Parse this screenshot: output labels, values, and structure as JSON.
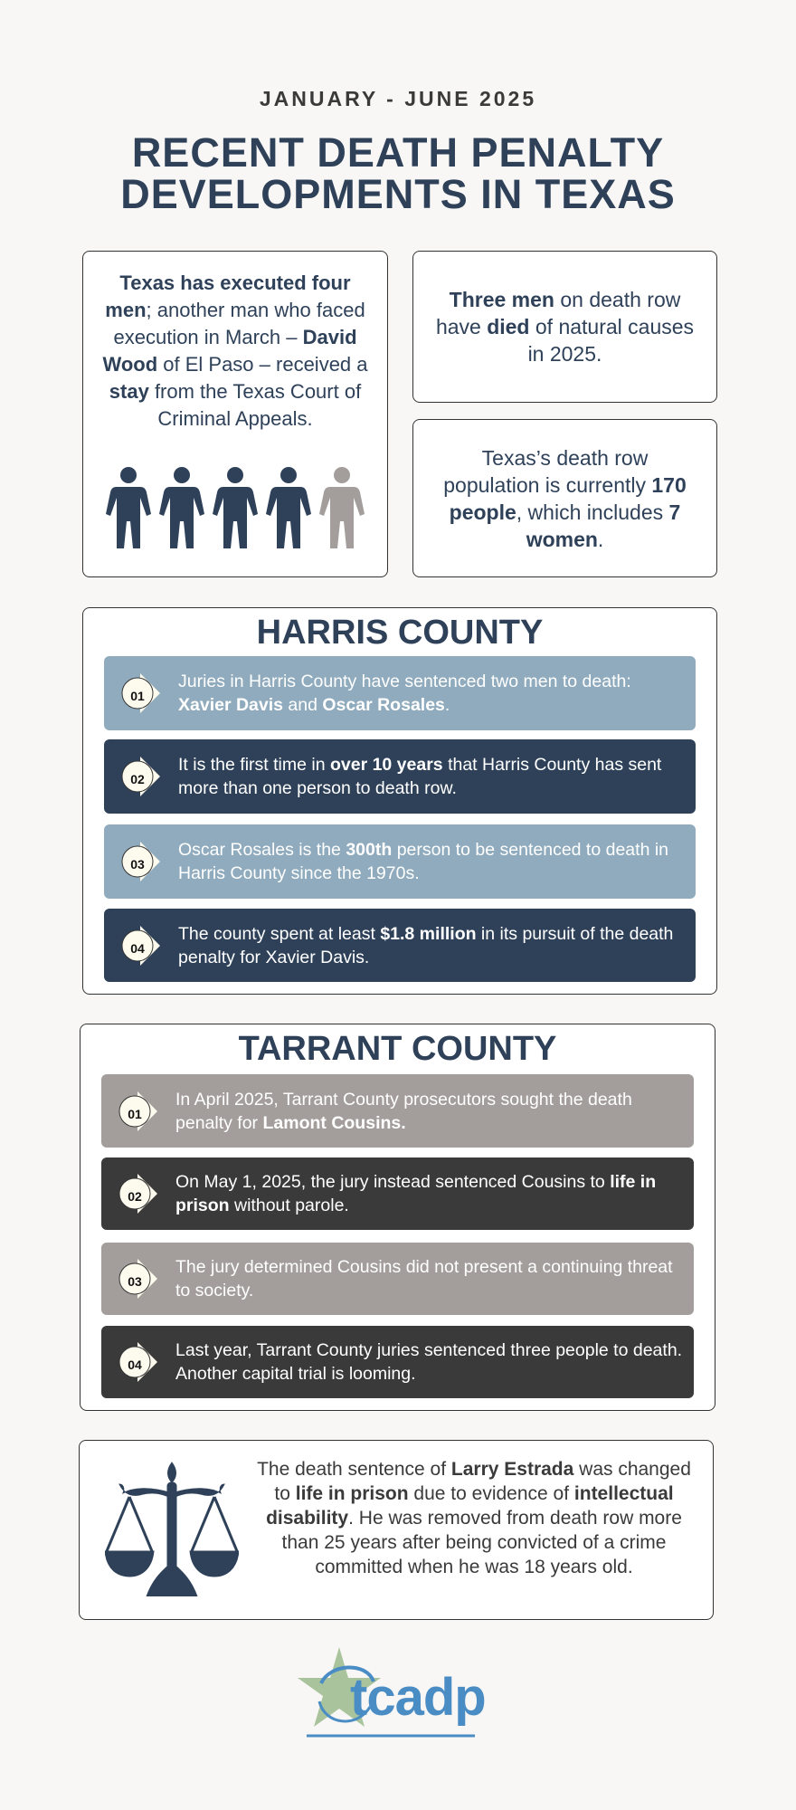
{
  "header": {
    "subtitle": "JANUARY - JUNE 2025",
    "title_line1": "RECENT DEATH PENALTY",
    "title_line2": "DEVELOPMENTS IN TEXAS"
  },
  "executions_card": {
    "text": [
      {
        "t": "Texas has executed four men",
        "b": true
      },
      {
        "t": "; another man who faced execution in March – "
      },
      {
        "t": "David Wood",
        "b": true
      },
      {
        "t": " of El Paso – received a "
      },
      {
        "t": "stay",
        "b": true
      },
      {
        "t": " from the Texas Court of Criminal Appeals."
      }
    ],
    "people_icons": {
      "total": 5,
      "executed": 4,
      "executed_color": "#2e4159",
      "stayed_color": "#a39e9b"
    }
  },
  "natural_causes_card": {
    "text": [
      {
        "t": "Three men",
        "b": true
      },
      {
        "t": " on death row have "
      },
      {
        "t": "died",
        "b": true
      },
      {
        "t": " of natural causes in 2025."
      }
    ]
  },
  "population_card": {
    "text": [
      {
        "t": "Texas’s death row population is currently "
      },
      {
        "t": "170 people",
        "b": true
      },
      {
        "t": ", which includes "
      },
      {
        "t": "7 women",
        "b": true
      },
      {
        "t": "."
      }
    ]
  },
  "harris": {
    "heading": "HARRIS COUNTY",
    "colors": {
      "light": "#8fabbd",
      "dark": "#2e4159"
    },
    "items": [
      {
        "num": "01",
        "text": [
          {
            "t": "Juries in Harris County have sentenced two men to death: "
          },
          {
            "t": "Xavier Davis",
            "b": true
          },
          {
            "t": " and "
          },
          {
            "t": "Oscar Rosales",
            "b": true
          },
          {
            "t": "."
          }
        ]
      },
      {
        "num": "02",
        "text": [
          {
            "t": "It is the first time in "
          },
          {
            "t": "over 10 years",
            "b": true
          },
          {
            "t": " that Harris County has sent more than one person to death row."
          }
        ]
      },
      {
        "num": "03",
        "text": [
          {
            "t": "Oscar Rosales is the "
          },
          {
            "t": "300th",
            "b": true
          },
          {
            "t": " person to be sentenced to death in Harris County since the 1970s."
          }
        ]
      },
      {
        "num": "04",
        "text": [
          {
            "t": "The county spent at least "
          },
          {
            "t": "$1.8 million",
            "b": true
          },
          {
            "t": " in its pursuit of the death penalty for Xavier Davis."
          }
        ]
      }
    ]
  },
  "tarrant": {
    "heading": "TARRANT COUNTY",
    "colors": {
      "light": "#a39e9b",
      "dark": "#3a3a3a"
    },
    "items": [
      {
        "num": "01",
        "text": [
          {
            "t": "In April 2025, Tarrant County prosecutors sought the death penalty for "
          },
          {
            "t": "Lamont Cousins.",
            "b": true
          }
        ]
      },
      {
        "num": "02",
        "text": [
          {
            "t": "On May 1, 2025, the jury instead sentenced Cousins to "
          },
          {
            "t": "life in prison",
            "b": true
          },
          {
            "t": " without parole."
          }
        ]
      },
      {
        "num": "03",
        "text": [
          {
            "t": "The jury determined Cousins did not present a continuing threat to society."
          }
        ]
      },
      {
        "num": "04",
        "text": [
          {
            "t": "Last year, Tarrant County juries sentenced three people to death. Another capital trial is looming."
          }
        ]
      }
    ]
  },
  "estrada_card": {
    "icon": "scales-of-justice-icon",
    "text": [
      {
        "t": "The death sentence of "
      },
      {
        "t": "Larry Estrada",
        "b": true
      },
      {
        "t": " was changed to "
      },
      {
        "t": "life in prison",
        "b": true
      },
      {
        "t": " due to evidence of "
      },
      {
        "t": "intellectual disability",
        "b": true
      },
      {
        "t": ". He was removed from death row more than 25 years after being convicted of a crime committed when he was 18 years old."
      }
    ]
  },
  "logo": {
    "text": "tcadp",
    "star_color": "#a9c49c",
    "text_color": "#4a8cc4"
  }
}
